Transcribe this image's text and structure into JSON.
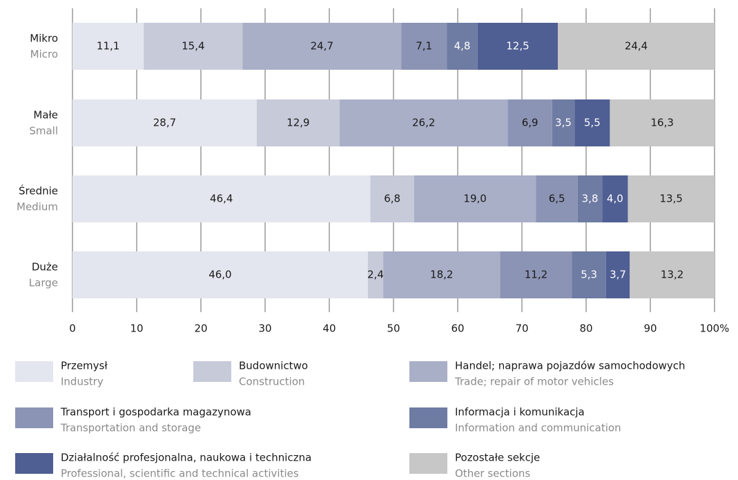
{
  "chart_data": {
    "type": "stacked_barh",
    "categories": [
      "Mikro",
      "Małe",
      "Średnie",
      "Duże"
    ],
    "categories_en": [
      "Micro",
      "Small",
      "Medium",
      "Large"
    ],
    "series": [
      {
        "name": "Przemysł",
        "name_en": "Industry",
        "color": "#e3e6ee",
        "label_color": "#1a1a1a",
        "values": [
          11.1,
          28.7,
          46.4,
          46.0
        ],
        "value_labels": [
          "11,1",
          "28,7",
          "46,4",
          "46,0"
        ]
      },
      {
        "name": "Budownictwo",
        "name_en": "Construction",
        "color": "#c6cad9",
        "label_color": "#1a1a1a",
        "values": [
          15.4,
          12.9,
          6.8,
          2.4
        ],
        "value_labels": [
          "15,4",
          "12,9",
          "6,8",
          "2,4"
        ]
      },
      {
        "name": "Handel; naprawa pojazdów samochodowych",
        "name_en": "Trade; repair of motor vehicles",
        "color": "#a9afc7",
        "label_color": "#1a1a1a",
        "values": [
          24.7,
          26.2,
          19.0,
          18.2
        ],
        "value_labels": [
          "24,7",
          "26,2",
          "19,0",
          "18,2"
        ]
      },
      {
        "name": "Transport i gospodarka magazynowa",
        "name_en": "Transportation and storage",
        "color": "#8b94b4",
        "label_color": "#1a1a1a",
        "values": [
          7.1,
          6.9,
          6.5,
          11.2
        ],
        "value_labels": [
          "7,1",
          "6,9",
          "6,5",
          "11,2"
        ]
      },
      {
        "name": "Informacja i komunikacja",
        "name_en": "Information and communication",
        "color": "#6e7ba2",
        "label_color": "#ffffff",
        "values": [
          4.8,
          3.5,
          3.8,
          5.3
        ],
        "value_labels": [
          "4,8",
          "3,5",
          "3,8",
          "5,3"
        ]
      },
      {
        "name": "Działalność profesjonalna, naukowa i techniczna",
        "name_en": "Professional, scientific and technical activities",
        "color": "#4f5e93",
        "label_color": "#ffffff",
        "values": [
          12.5,
          5.5,
          4.0,
          3.7
        ],
        "value_labels": [
          "12,5",
          "5,5",
          "4,0",
          "3,7"
        ]
      },
      {
        "name": "Pozostałe sekcje",
        "name_en": "Other sections",
        "color": "#c7c7c7",
        "label_color": "#1a1a1a",
        "values": [
          24.4,
          16.3,
          13.5,
          13.2
        ],
        "value_labels": [
          "24,4",
          "16,3",
          "13,5",
          "13,2"
        ]
      }
    ],
    "xlim": [
      0,
      100
    ],
    "xticks": [
      0,
      10,
      20,
      30,
      40,
      50,
      60,
      70,
      80,
      90,
      {
        "value": 100,
        "label": "100%"
      }
    ],
    "grid": true
  }
}
